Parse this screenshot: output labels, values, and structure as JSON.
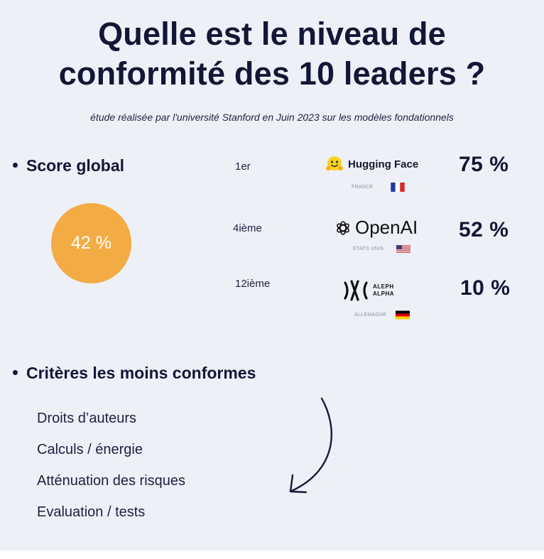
{
  "title_line1": "Quelle est le niveau de",
  "title_line2": "conformité des 10 leaders ?",
  "subtitle": "étude réalisée par l'université Stanford en Juin 2023 sur les modèles fondationnels",
  "score_section": {
    "heading": "Score global",
    "global_score": "42 %",
    "circle_color": "#f3ab44"
  },
  "leaders": [
    {
      "rank": "1er",
      "name": "Hugging Face",
      "country": "FRANCE",
      "score": "75 %",
      "flag": "france-flag"
    },
    {
      "rank": "4ième",
      "name": "OpenAI",
      "country": "ETATS UNIS",
      "score": "52 %",
      "flag": "usa-flag"
    },
    {
      "rank": "12ième",
      "name_line1": "ALEPH",
      "name_line2": "ALPHA",
      "country": "ALLEMAGNE",
      "score": "10 %",
      "flag": "germany-flag"
    }
  ],
  "criteria_section": {
    "heading": "Critères les moins conformes",
    "items": [
      "Droits d’auteurs",
      "Calculs / énergie",
      "Atténuation des risques",
      "Evaluation / tests"
    ]
  }
}
